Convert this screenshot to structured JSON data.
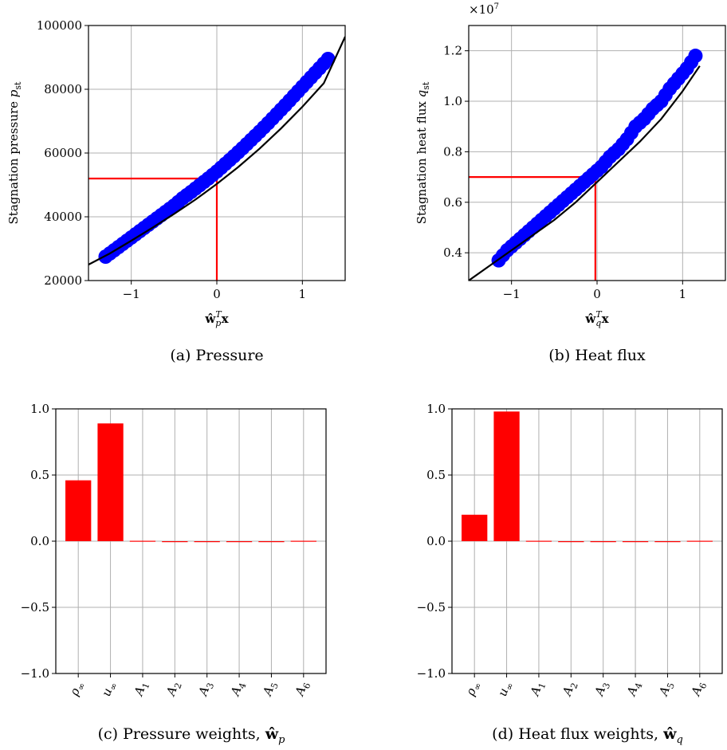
{
  "chart_data": [
    {
      "type": "scatter",
      "caption": "(a) Pressure",
      "xlabel": "ŵ_p^T x",
      "ylabel": "Stagnation pressure p_st",
      "xlim": [
        -1.5,
        1.5
      ],
      "ylim": [
        20000,
        100000
      ],
      "xticks": [
        -1,
        0,
        1
      ],
      "xtick_labels": [
        "−1",
        "0",
        "1"
      ],
      "yticks": [
        20000,
        40000,
        60000,
        80000,
        100000
      ],
      "ytick_labels": [
        "20000",
        "40000",
        "60000",
        "80000",
        "100000"
      ],
      "grid": true,
      "scatter": {
        "color": "#0000ff",
        "x": [
          -1.3,
          -1.2,
          -1.1,
          -1.0,
          -0.9,
          -0.8,
          -0.7,
          -0.6,
          -0.5,
          -0.4,
          -0.3,
          -0.2,
          -0.1,
          0.0,
          0.1,
          0.2,
          0.3,
          0.4,
          0.5,
          0.6,
          0.7,
          0.8,
          0.9,
          1.0,
          1.1,
          1.2,
          1.3
        ],
        "y": [
          27500,
          29500,
          31500,
          33500,
          35500,
          37500,
          39500,
          41500,
          43500,
          45800,
          47800,
          49900,
          52000,
          54200,
          56600,
          59000,
          61500,
          64100,
          66700,
          69400,
          72200,
          75000,
          77900,
          80800,
          83700,
          86600,
          89500
        ]
      },
      "fit_curve": {
        "color": "#000000",
        "x": [
          -1.5,
          -1.25,
          -1.0,
          -0.75,
          -0.5,
          -0.25,
          0.0,
          0.25,
          0.5,
          0.75,
          1.0,
          1.25,
          1.5
        ],
        "y": [
          25000,
          28500,
          32500,
          36600,
          40900,
          45400,
          50300,
          55600,
          61400,
          67700,
          74500,
          81900,
          96500
        ]
      },
      "reference_lines": {
        "color": "#ff0000",
        "x": 0.0,
        "y": 52000
      }
    },
    {
      "type": "scatter",
      "caption": "(b) Heat flux",
      "xlabel": "ŵ_q^T x",
      "ylabel": "Stagnation heat flux q_st",
      "offset_text": "×10^7",
      "xlim": [
        -1.5,
        1.5
      ],
      "ylim": [
        0.29,
        1.3
      ],
      "xticks": [
        -1,
        0,
        1
      ],
      "xtick_labels": [
        "−1",
        "0",
        "1"
      ],
      "yticks": [
        0.4,
        0.6,
        0.8,
        1.0,
        1.2
      ],
      "ytick_labels": [
        "0.4",
        "0.6",
        "0.8",
        "1.0",
        "1.2"
      ],
      "grid": true,
      "scatter": {
        "color": "#0000ff",
        "x": [
          -1.15,
          -1.05,
          -0.95,
          -0.85,
          -0.75,
          -0.65,
          -0.55,
          -0.45,
          -0.35,
          -0.25,
          -0.15,
          -0.05,
          0.05,
          0.15,
          0.25,
          0.35,
          0.45,
          0.55,
          0.65,
          0.75,
          0.85,
          0.95,
          1.05,
          1.15
        ],
        "y": [
          0.37,
          0.41,
          0.44,
          0.47,
          0.5,
          0.53,
          0.56,
          0.59,
          0.62,
          0.65,
          0.68,
          0.71,
          0.74,
          0.78,
          0.81,
          0.85,
          0.9,
          0.93,
          0.97,
          1.0,
          1.05,
          1.09,
          1.13,
          1.18
        ]
      },
      "fit_curve": {
        "color": "#000000",
        "x": [
          -1.5,
          -1.25,
          -1.0,
          -0.75,
          -0.5,
          -0.25,
          0.0,
          0.25,
          0.5,
          0.75,
          1.0,
          1.2
        ],
        "y": [
          0.29,
          0.35,
          0.41,
          0.47,
          0.53,
          0.6,
          0.68,
          0.76,
          0.84,
          0.93,
          1.04,
          1.14
        ]
      },
      "reference_lines": {
        "color": "#ff0000",
        "x": -0.02,
        "y": 0.7
      }
    },
    {
      "type": "bar",
      "caption": "(c) Pressure weights, ŵ_p",
      "categories": [
        "ρ_∞",
        "u_∞",
        "A_1",
        "A_2",
        "A_3",
        "A_4",
        "A_5",
        "A_6"
      ],
      "values": [
        0.46,
        0.89,
        0.003,
        0.0,
        0.0,
        0.0,
        0.0,
        0.003
      ],
      "color": "#ff0000",
      "ylim": [
        -1.0,
        1.0
      ],
      "yticks": [
        -1.0,
        -0.5,
        0.0,
        0.5,
        1.0
      ],
      "ytick_labels": [
        "−1.0",
        "−0.5",
        "0.0",
        "0.5",
        "1.0"
      ],
      "grid": true
    },
    {
      "type": "bar",
      "caption": "(d) Heat flux weights, ŵ_q",
      "categories": [
        "ρ_∞",
        "u_∞",
        "A_1",
        "A_2",
        "A_3",
        "A_4",
        "A_5",
        "A_6"
      ],
      "values": [
        0.2,
        0.98,
        0.003,
        0.0,
        0.0,
        0.0,
        0.0,
        0.003
      ],
      "color": "#ff0000",
      "ylim": [
        -1.0,
        1.0
      ],
      "yticks": [
        -1.0,
        -0.5,
        0.0,
        0.5,
        1.0
      ],
      "ytick_labels": [
        "−1.0",
        "−0.5",
        "0.0",
        "0.5",
        "1.0"
      ],
      "grid": true
    }
  ]
}
